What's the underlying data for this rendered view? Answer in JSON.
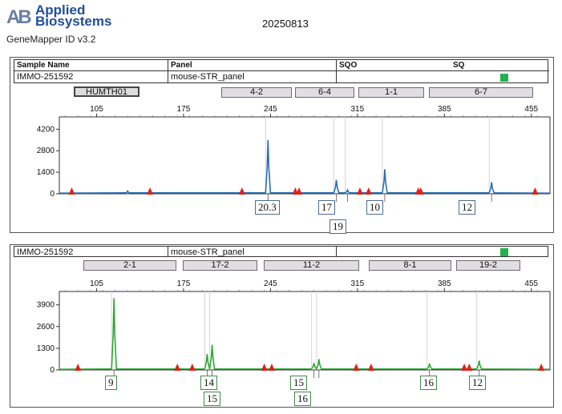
{
  "header": {
    "logo_line1": "Applied",
    "logo_line2": "Biosystems",
    "logo_mark": "AB",
    "software": "GeneMapper ID v3.2",
    "date": "20250813"
  },
  "table_headers": {
    "sample_name": "Sample Name",
    "panel": "Panel",
    "sqo": "SQO",
    "sq": "SQ"
  },
  "panel1": {
    "sample": "IMMO-251592",
    "panel_name": "mouse-STR_panel",
    "markers": [
      "HUMTH01",
      "4-2",
      "6-4",
      "1-1",
      "6-7"
    ],
    "calls": [
      "20.3",
      "17",
      "19",
      "10",
      "12"
    ]
  },
  "panel2": {
    "sample": "IMMO-251592",
    "panel_name": "mouse-STR_panel",
    "markers": [
      "2-1",
      "17-2",
      "11-2",
      "8-1",
      "19-2"
    ],
    "calls": [
      "9",
      "14",
      "15",
      "15",
      "16",
      "16",
      "12"
    ]
  },
  "colors": {
    "blue_trace": "#2a6fb3",
    "green_trace": "#2fa836",
    "size_standard": "#e0231a",
    "quality_ok": "#22b14c"
  },
  "chart_data": [
    {
      "type": "line",
      "xlabel": "",
      "ylabel": "",
      "x_ticks": [
        105,
        175,
        245,
        315,
        385,
        455
      ],
      "y_ticks": [
        0,
        1400,
        2800,
        4200
      ],
      "xlim": [
        75,
        470
      ],
      "ylim": [
        0,
        5000
      ],
      "series": [
        {
          "color": "#2a6fb3",
          "peaks": [
            {
              "x": 130,
              "y": 180
            },
            {
              "x": 243,
              "y": 3500
            },
            {
              "x": 298,
              "y": 900
            },
            {
              "x": 307,
              "y": 250
            },
            {
              "x": 337,
              "y": 1600
            },
            {
              "x": 423,
              "y": 750
            }
          ]
        }
      ],
      "size_standard_x": [
        85,
        148,
        222,
        265,
        268,
        317,
        324,
        364,
        366,
        458
      ],
      "allele_calls": [
        {
          "label": "20.3",
          "x": 243
        },
        {
          "label": "17",
          "x": 298
        },
        {
          "label": "19",
          "x": 307
        },
        {
          "label": "10",
          "x": 337
        },
        {
          "label": "12",
          "x": 423
        }
      ]
    },
    {
      "type": "line",
      "xlabel": "",
      "ylabel": "",
      "x_ticks": [
        105,
        175,
        245,
        315,
        385,
        455
      ],
      "y_ticks": [
        0,
        1300,
        2600,
        3900
      ],
      "xlim": [
        75,
        470
      ],
      "ylim": [
        0,
        4700
      ],
      "series": [
        {
          "color": "#2fa836",
          "peaks": [
            {
              "x": 119,
              "y": 4300
            },
            {
              "x": 194,
              "y": 950
            },
            {
              "x": 198,
              "y": 1500
            },
            {
              "x": 280,
              "y": 420
            },
            {
              "x": 284,
              "y": 650
            },
            {
              "x": 373,
              "y": 380
            },
            {
              "x": 413,
              "y": 560
            }
          ]
        }
      ],
      "size_standard_x": [
        90,
        170,
        182,
        240,
        246,
        314,
        326,
        401,
        405,
        463
      ],
      "allele_calls": [
        {
          "label": "9",
          "x": 119
        },
        {
          "label": "14",
          "x": 194
        },
        {
          "label": "15",
          "x": 198
        },
        {
          "label": "15",
          "x": 280
        },
        {
          "label": "16",
          "x": 284
        },
        {
          "label": "16",
          "x": 373
        },
        {
          "label": "12",
          "x": 413
        }
      ]
    }
  ]
}
